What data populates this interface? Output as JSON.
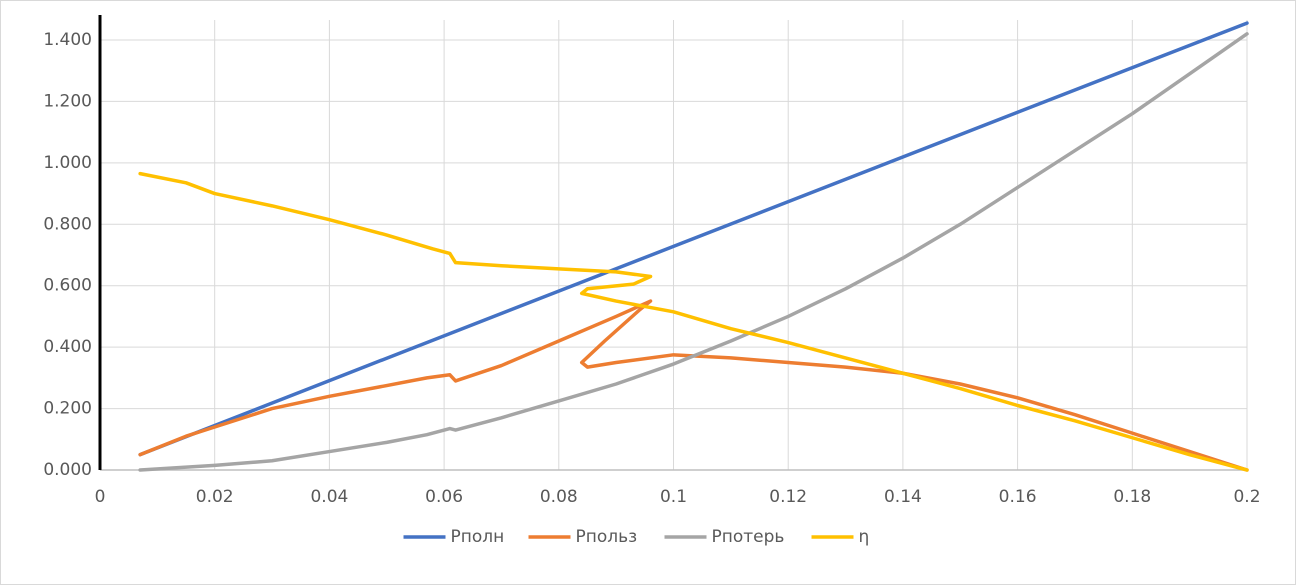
{
  "chart_data": {
    "type": "line",
    "xlim": [
      0,
      0.2
    ],
    "xticks": [
      0,
      0.02,
      0.04,
      0.06,
      0.08,
      0.1,
      0.12,
      0.14,
      0.16,
      0.18,
      0.2
    ],
    "ylim": [
      0,
      1.4
    ],
    "yticks": [
      {
        "value": 0,
        "label": "0.000"
      },
      {
        "value": 0.2,
        "label": "0.200"
      },
      {
        "value": 0.4,
        "label": "0.400"
      },
      {
        "value": 0.6,
        "label": "0.600"
      },
      {
        "value": 0.8,
        "label": "0.800"
      },
      {
        "value": 1.0,
        "label": "1.000"
      },
      {
        "value": 1.2,
        "label": "1.200"
      },
      {
        "value": 1.4,
        "label": "1.400"
      }
    ],
    "grid": true,
    "legend": "bottom",
    "series": [
      {
        "name": "Pполн",
        "color": "#4472c4",
        "x": [
          0.007,
          0.05,
          0.1,
          0.15,
          0.2
        ],
        "values": [
          0.05,
          0.364,
          0.728,
          1.092,
          1.455
        ]
      },
      {
        "name": "Pпольз",
        "color": "#ed7d31",
        "x": [
          0.007,
          0.015,
          0.02,
          0.03,
          0.04,
          0.05,
          0.057,
          0.061,
          0.062,
          0.07,
          0.08,
          0.09,
          0.096,
          0.094,
          0.088,
          0.084,
          0.085,
          0.09,
          0.1,
          0.11,
          0.12,
          0.13,
          0.14,
          0.15,
          0.16,
          0.17,
          0.18,
          0.19,
          0.2
        ],
        "values": [
          0.05,
          0.11,
          0.14,
          0.2,
          0.24,
          0.275,
          0.3,
          0.31,
          0.29,
          0.34,
          0.42,
          0.5,
          0.55,
          0.52,
          0.42,
          0.35,
          0.335,
          0.35,
          0.375,
          0.365,
          0.35,
          0.335,
          0.315,
          0.28,
          0.235,
          0.18,
          0.12,
          0.06,
          0
        ]
      },
      {
        "name": "Pпотерь",
        "color": "#a5a5a5",
        "x": [
          0.007,
          0.02,
          0.03,
          0.04,
          0.05,
          0.057,
          0.061,
          0.062,
          0.07,
          0.08,
          0.09,
          0.1,
          0.11,
          0.12,
          0.13,
          0.14,
          0.15,
          0.16,
          0.17,
          0.18,
          0.19,
          0.2
        ],
        "values": [
          0,
          0.015,
          0.03,
          0.06,
          0.09,
          0.115,
          0.135,
          0.13,
          0.17,
          0.225,
          0.28,
          0.345,
          0.42,
          0.5,
          0.59,
          0.69,
          0.8,
          0.92,
          1.04,
          1.16,
          1.29,
          1.42
        ]
      },
      {
        "name": "η",
        "color": "#ffc000",
        "x": [
          0.007,
          0.015,
          0.02,
          0.03,
          0.04,
          0.05,
          0.058,
          0.061,
          0.062,
          0.07,
          0.08,
          0.09,
          0.096,
          0.093,
          0.085,
          0.084,
          0.09,
          0.1,
          0.11,
          0.12,
          0.13,
          0.14,
          0.15,
          0.16,
          0.17,
          0.18,
          0.19,
          0.2
        ],
        "values": [
          0.965,
          0.935,
          0.9,
          0.86,
          0.815,
          0.765,
          0.72,
          0.705,
          0.675,
          0.665,
          0.655,
          0.645,
          0.63,
          0.605,
          0.59,
          0.575,
          0.55,
          0.515,
          0.46,
          0.415,
          0.365,
          0.315,
          0.265,
          0.21,
          0.16,
          0.105,
          0.05,
          0
        ]
      }
    ]
  }
}
